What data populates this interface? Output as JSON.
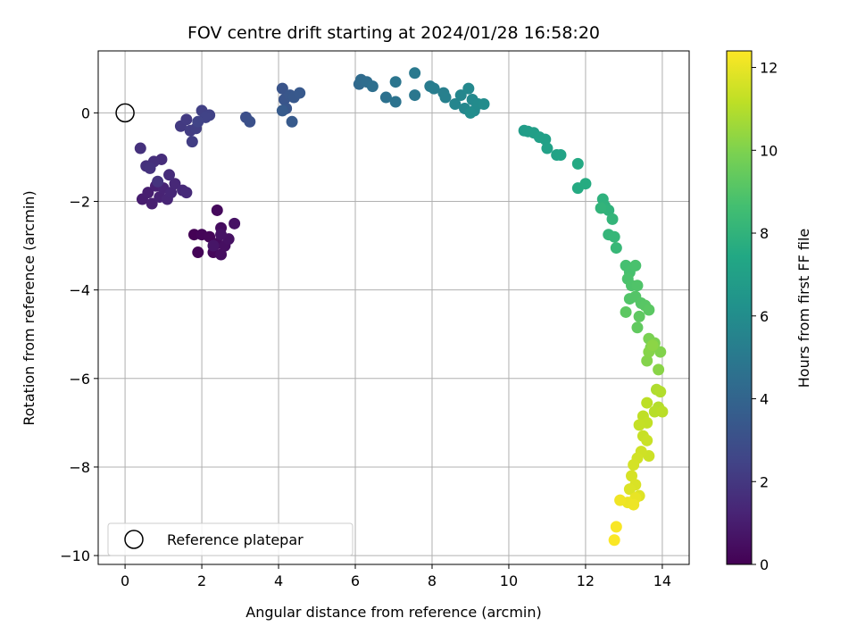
{
  "chart_data": {
    "type": "scatter",
    "title": "FOV centre drift starting at 2024/01/28 16:58:20",
    "xlabel": "Angular distance from reference (arcmin)",
    "ylabel": "Rotation from reference (arcmin)",
    "xlim": [
      -0.7,
      14.7
    ],
    "ylim": [
      -10.2,
      1.4
    ],
    "xticks": [
      0,
      2,
      4,
      6,
      8,
      10,
      12,
      14
    ],
    "yticks": [
      -10,
      -8,
      -6,
      -4,
      -2,
      0
    ],
    "grid": true,
    "legend": {
      "position": "lower-left",
      "label": "Reference platepar"
    },
    "reference_point": {
      "x": 0,
      "y": 0
    },
    "colorbar": {
      "label": "Hours from first FF file",
      "colormap": "viridis",
      "range": [
        0,
        12.4
      ],
      "ticks": [
        0,
        2,
        4,
        6,
        8,
        10,
        12
      ]
    },
    "points": [
      [
        1.8,
        -2.75,
        0.05
      ],
      [
        1.9,
        -3.15,
        0.1
      ],
      [
        2.0,
        -2.75,
        0.15
      ],
      [
        2.2,
        -2.8,
        0.2
      ],
      [
        2.3,
        -3.15,
        0.25
      ],
      [
        2.4,
        -2.2,
        0.3
      ],
      [
        2.4,
        -2.95,
        0.35
      ],
      [
        2.5,
        -2.6,
        0.4
      ],
      [
        2.5,
        -3.2,
        0.45
      ],
      [
        2.6,
        -3.0,
        0.5
      ],
      [
        2.7,
        -2.85,
        0.55
      ],
      [
        2.85,
        -2.5,
        0.6
      ],
      [
        2.5,
        -2.75,
        0.65
      ],
      [
        2.3,
        -3.0,
        0.7
      ],
      [
        0.45,
        -1.95,
        1.0
      ],
      [
        0.6,
        -1.8,
        1.05
      ],
      [
        0.7,
        -2.05,
        1.1
      ],
      [
        0.8,
        -1.65,
        1.15
      ],
      [
        0.9,
        -1.9,
        1.2
      ],
      [
        1.0,
        -1.7,
        1.25
      ],
      [
        1.1,
        -1.95,
        1.3
      ],
      [
        1.2,
        -1.8,
        1.35
      ],
      [
        1.3,
        -1.6,
        1.4
      ],
      [
        1.5,
        -1.75,
        1.45
      ],
      [
        1.6,
        -1.8,
        1.5
      ],
      [
        1.15,
        -1.4,
        1.55
      ],
      [
        0.95,
        -1.05,
        1.6
      ],
      [
        0.75,
        -1.1,
        1.65
      ],
      [
        0.55,
        -1.2,
        1.7
      ],
      [
        0.4,
        -0.8,
        1.75
      ],
      [
        0.65,
        -1.25,
        1.8
      ],
      [
        0.85,
        -1.55,
        1.85
      ],
      [
        1.45,
        -0.3,
        2.1
      ],
      [
        1.6,
        -0.15,
        2.15
      ],
      [
        1.7,
        -0.4,
        2.2
      ],
      [
        1.75,
        -0.65,
        2.25
      ],
      [
        1.85,
        -0.35,
        2.3
      ],
      [
        2.0,
        0.05,
        2.35
      ],
      [
        2.2,
        -0.05,
        2.4
      ],
      [
        2.1,
        -0.1,
        2.45
      ],
      [
        1.9,
        -0.2,
        2.5
      ],
      [
        3.15,
        -0.1,
        3.0
      ],
      [
        3.25,
        -0.2,
        3.05
      ],
      [
        4.1,
        0.55,
        3.2
      ],
      [
        4.15,
        0.3,
        3.25
      ],
      [
        4.2,
        0.1,
        3.3
      ],
      [
        4.3,
        0.4,
        3.35
      ],
      [
        4.4,
        0.35,
        3.4
      ],
      [
        4.55,
        0.45,
        3.45
      ],
      [
        4.35,
        -0.2,
        3.5
      ],
      [
        4.1,
        0.05,
        3.55
      ],
      [
        6.1,
        0.65,
        4.2
      ],
      [
        6.15,
        0.75,
        4.3
      ],
      [
        6.3,
        0.7,
        4.4
      ],
      [
        6.45,
        0.6,
        4.5
      ],
      [
        6.8,
        0.35,
        4.6
      ],
      [
        7.05,
        0.25,
        4.7
      ],
      [
        7.05,
        0.7,
        4.8
      ],
      [
        7.55,
        0.4,
        4.9
      ],
      [
        7.55,
        0.9,
        5.0
      ],
      [
        7.95,
        0.6,
        5.1
      ],
      [
        8.05,
        0.55,
        5.2
      ],
      [
        8.3,
        0.45,
        5.3
      ],
      [
        8.35,
        0.35,
        5.35
      ],
      [
        8.6,
        0.2,
        5.6
      ],
      [
        8.75,
        0.4,
        5.65
      ],
      [
        8.85,
        0.1,
        5.7
      ],
      [
        8.95,
        0.55,
        5.75
      ],
      [
        9.05,
        0.3,
        5.8
      ],
      [
        9.1,
        0.05,
        5.85
      ],
      [
        9.2,
        0.2,
        5.9
      ],
      [
        9.35,
        0.2,
        5.95
      ],
      [
        9.0,
        0.0,
        6.0
      ],
      [
        10.4,
        -0.4,
        6.8
      ],
      [
        10.5,
        -0.42,
        6.85
      ],
      [
        10.65,
        -0.45,
        6.9
      ],
      [
        10.8,
        -0.55,
        6.95
      ],
      [
        10.95,
        -0.6,
        7.0
      ],
      [
        11.0,
        -0.8,
        7.05
      ],
      [
        11.25,
        -0.95,
        7.1
      ],
      [
        11.35,
        -0.95,
        7.15
      ],
      [
        11.8,
        -1.15,
        7.5
      ],
      [
        11.8,
        -1.7,
        7.55
      ],
      [
        12.0,
        -1.6,
        7.6
      ],
      [
        12.45,
        -1.95,
        7.9
      ],
      [
        12.5,
        -2.1,
        7.95
      ],
      [
        12.6,
        -2.2,
        8.0
      ],
      [
        12.4,
        -2.15,
        8.05
      ],
      [
        12.7,
        -2.4,
        8.1
      ],
      [
        12.6,
        -2.75,
        8.15
      ],
      [
        12.75,
        -2.8,
        8.2
      ],
      [
        12.8,
        -3.05,
        8.25
      ],
      [
        13.05,
        -3.45,
        8.7
      ],
      [
        13.15,
        -3.6,
        8.75
      ],
      [
        13.3,
        -3.45,
        8.8
      ],
      [
        13.1,
        -3.75,
        8.85
      ],
      [
        13.2,
        -3.9,
        8.9
      ],
      [
        13.35,
        -3.9,
        8.95
      ],
      [
        13.15,
        -4.2,
        9.0
      ],
      [
        13.3,
        -4.15,
        9.05
      ],
      [
        13.45,
        -4.3,
        9.1
      ],
      [
        13.55,
        -4.35,
        9.15
      ],
      [
        13.65,
        -4.45,
        9.2
      ],
      [
        13.05,
        -4.5,
        9.25
      ],
      [
        13.4,
        -4.6,
        9.3
      ],
      [
        13.35,
        -4.85,
        9.35
      ],
      [
        13.65,
        -5.1,
        9.9
      ],
      [
        13.8,
        -5.2,
        9.95
      ],
      [
        13.7,
        -5.3,
        10.0
      ],
      [
        13.95,
        -5.4,
        10.05
      ],
      [
        13.6,
        -5.6,
        10.1
      ],
      [
        13.65,
        -5.4,
        10.15
      ],
      [
        13.9,
        -5.8,
        10.2
      ],
      [
        13.75,
        -5.25,
        10.25
      ],
      [
        13.85,
        -6.25,
        10.9
      ],
      [
        13.95,
        -6.3,
        10.95
      ],
      [
        13.9,
        -6.65,
        11.0
      ],
      [
        13.8,
        -6.75,
        11.05
      ],
      [
        14.0,
        -6.75,
        11.1
      ],
      [
        13.6,
        -6.55,
        11.15
      ],
      [
        13.5,
        -6.85,
        11.2
      ],
      [
        13.6,
        -7.0,
        11.25
      ],
      [
        13.4,
        -7.05,
        11.3
      ],
      [
        13.5,
        -7.3,
        11.35
      ],
      [
        13.6,
        -7.4,
        11.4
      ],
      [
        13.65,
        -7.75,
        11.45
      ],
      [
        13.45,
        -7.65,
        11.5
      ],
      [
        13.35,
        -7.8,
        11.55
      ],
      [
        13.25,
        -7.95,
        11.6
      ],
      [
        13.2,
        -8.2,
        11.65
      ],
      [
        13.3,
        -8.4,
        11.7
      ],
      [
        13.15,
        -8.5,
        11.75
      ],
      [
        13.4,
        -8.65,
        11.8
      ],
      [
        13.3,
        -8.7,
        12.0
      ],
      [
        13.1,
        -8.8,
        12.05
      ],
      [
        13.25,
        -8.85,
        12.1
      ],
      [
        12.9,
        -8.75,
        12.15
      ],
      [
        12.8,
        -9.35,
        12.3
      ],
      [
        12.75,
        -9.65,
        12.35
      ]
    ]
  }
}
